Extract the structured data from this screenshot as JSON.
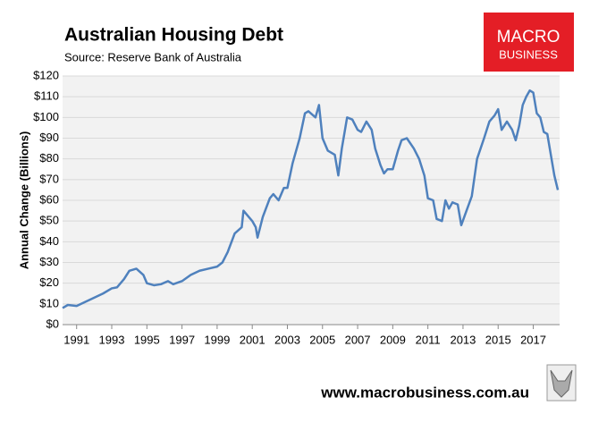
{
  "chart_data": {
    "type": "line",
    "title": "Australian Housing Debt",
    "subtitle": "Source: Reserve Bank of Australia",
    "y_label": "Annual Change (Billions)",
    "logo": [
      "MACRO",
      "BUSINESS"
    ],
    "footer": "www.macrobusiness.com.au",
    "color": "#4f81bd",
    "grid": true,
    "xlim": [
      1990.2,
      2018.5
    ],
    "xticks": [
      1991,
      1993,
      1995,
      1997,
      1999,
      2001,
      2003,
      2005,
      2007,
      2009,
      2011,
      2013,
      2015,
      2017
    ],
    "ylim": [
      0,
      120
    ],
    "yticks": [
      {
        "value": 0,
        "label": "$0"
      },
      {
        "value": 10,
        "label": "$10"
      },
      {
        "value": 20,
        "label": "$20"
      },
      {
        "value": 30,
        "label": "$30"
      },
      {
        "value": 40,
        "label": "$40"
      },
      {
        "value": 50,
        "label": "$50"
      },
      {
        "value": 60,
        "label": "$60"
      },
      {
        "value": 70,
        "label": "$70"
      },
      {
        "value": 80,
        "label": "$80"
      },
      {
        "value": 90,
        "label": "$90"
      },
      {
        "value": 100,
        "label": "$100"
      },
      {
        "value": 110,
        "label": "$110"
      },
      {
        "value": 120,
        "label": "$120"
      }
    ],
    "x": [
      1990.2,
      1990.5,
      1991,
      1991.5,
      1992,
      1992.5,
      1993,
      1993.3,
      1993.7,
      1994,
      1994.4,
      1994.8,
      1995,
      1995.4,
      1995.8,
      1996.2,
      1996.5,
      1997,
      1997.5,
      1998,
      1998.5,
      1999,
      1999.3,
      1999.6,
      2000,
      2000.4,
      2000.5,
      2000.8,
      2001,
      2001.2,
      2001.3,
      2001.6,
      2002,
      2002.2,
      2002.5,
      2002.8,
      2003,
      2003.3,
      2003.7,
      2004,
      2004.2,
      2004.6,
      2004.8,
      2005,
      2005.3,
      2005.7,
      2005.9,
      2006.1,
      2006.4,
      2006.7,
      2007,
      2007.2,
      2007.5,
      2007.8,
      2008,
      2008.3,
      2008.5,
      2008.7,
      2009,
      2009.3,
      2009.5,
      2009.8,
      2010.2,
      2010.5,
      2010.8,
      2011,
      2011.3,
      2011.5,
      2011.8,
      2012,
      2012.2,
      2012.4,
      2012.7,
      2012.9,
      2013.2,
      2013.5,
      2013.8,
      2014.2,
      2014.5,
      2014.8,
      2015,
      2015.2,
      2015.5,
      2015.8,
      2016,
      2016.2,
      2016.4,
      2016.6,
      2016.8,
      2017,
      2017.2,
      2017.4,
      2017.6,
      2017.8,
      2018,
      2018.2,
      2018.4
    ],
    "values": [
      8,
      9.5,
      9,
      11,
      13,
      15,
      17.5,
      18,
      22,
      26,
      27,
      24,
      20,
      19,
      19.5,
      21,
      19.5,
      21,
      24,
      26,
      27,
      28,
      30,
      35,
      44,
      47,
      55,
      52,
      50,
      47,
      42,
      52,
      61,
      63,
      60,
      66,
      66,
      78,
      90,
      102,
      103,
      100,
      106,
      90,
      84,
      82,
      72,
      85,
      100,
      99,
      94,
      93,
      98,
      94,
      85,
      77,
      73,
      75,
      75,
      84,
      89,
      90,
      85,
      80,
      72,
      61,
      60,
      51,
      50,
      60,
      56,
      59,
      58,
      48,
      55,
      62,
      80,
      90,
      98,
      101,
      104,
      94,
      98,
      94,
      89,
      96,
      106,
      110,
      113,
      112,
      102,
      100,
      93,
      92,
      82,
      72,
      65
    ]
  }
}
